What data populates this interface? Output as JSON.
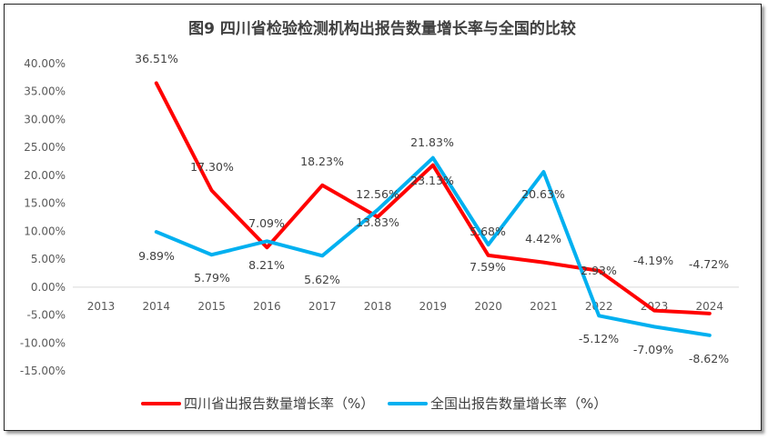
{
  "chart_data": {
    "type": "line",
    "title": "图9   四川省检验检测机构出报告数量增长率与全国的比较",
    "categories": [
      "2013",
      "2014",
      "2015",
      "2016",
      "2017",
      "2018",
      "2019",
      "2020",
      "2021",
      "2022",
      "2023",
      "2024"
    ],
    "ylim": [
      -15,
      40
    ],
    "yticks": [
      "40.00%",
      "35.00%",
      "30.00%",
      "25.00%",
      "20.00%",
      "15.00%",
      "10.00%",
      "5.00%",
      "0.00%",
      "-5.00%",
      "-10.00%",
      "-15.00%"
    ],
    "grid": false,
    "legend": "bottom",
    "series": [
      {
        "name": "四川省出报告数量增长率（%）",
        "color": "#ff0000",
        "values": [
          null,
          36.51,
          17.3,
          7.09,
          18.23,
          12.56,
          21.83,
          5.68,
          4.42,
          2.93,
          -4.19,
          -4.72
        ],
        "labels": [
          "",
          "36.51%",
          "17.30%",
          "7.09%",
          "18.23%",
          "12.56%",
          "21.83%",
          "5.68%",
          "4.42%",
          "2.93%",
          "-4.19%",
          "-4.72%"
        ]
      },
      {
        "name": "全国出报告数量增长率（%）",
        "color": "#00b0f0",
        "values": [
          null,
          9.89,
          5.79,
          8.21,
          5.62,
          13.83,
          23.13,
          7.59,
          20.63,
          -5.12,
          -7.09,
          -8.62
        ],
        "labels": [
          "",
          "9.89%",
          "5.79%",
          "8.21%",
          "5.62%",
          "13.83%",
          "23.13%",
          "7.59%",
          "20.63%",
          "-5.12%",
          "-7.09%",
          "-8.62%"
        ]
      }
    ]
  }
}
